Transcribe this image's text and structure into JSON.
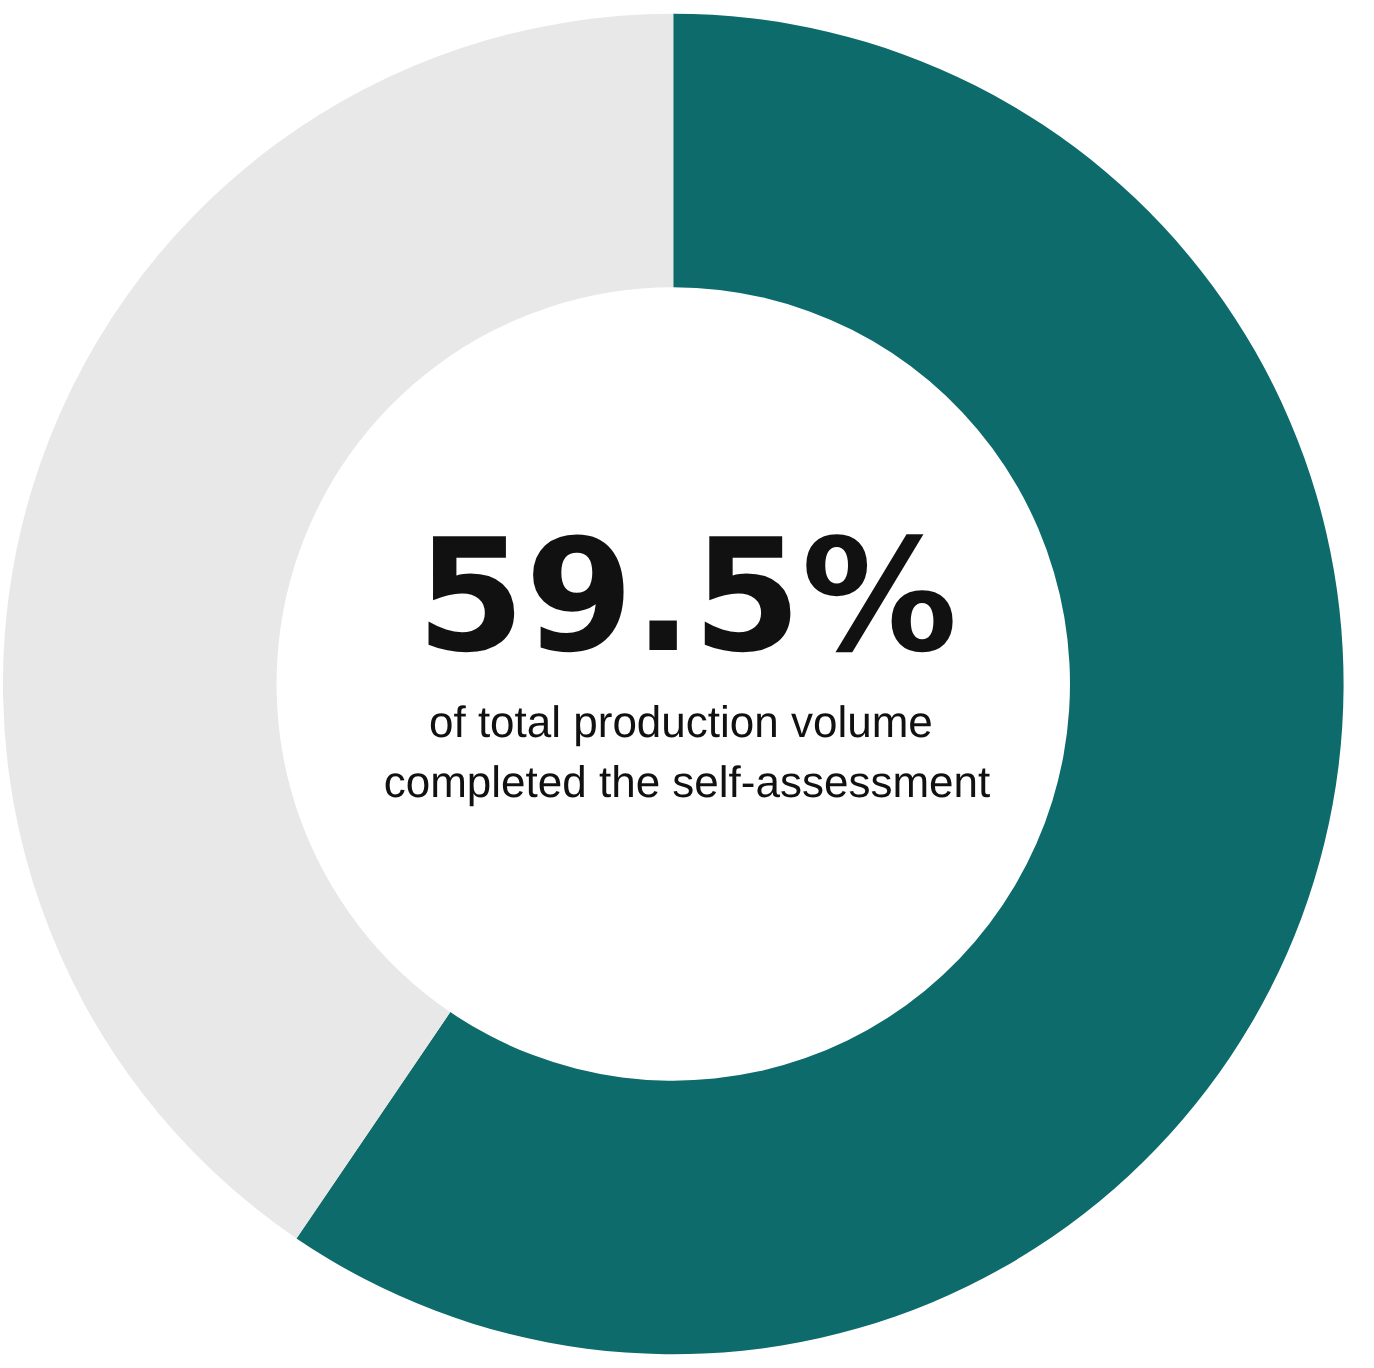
{
  "chart_data": {
    "type": "donut",
    "title": "59.5%",
    "subtitle": "of total production volume completed the self-assessment",
    "categories": [
      null,
      null
    ],
    "values": [
      59.5,
      40.5
    ],
    "colors": [
      "#0e6b6b",
      "#e8e8e8"
    ]
  }
}
